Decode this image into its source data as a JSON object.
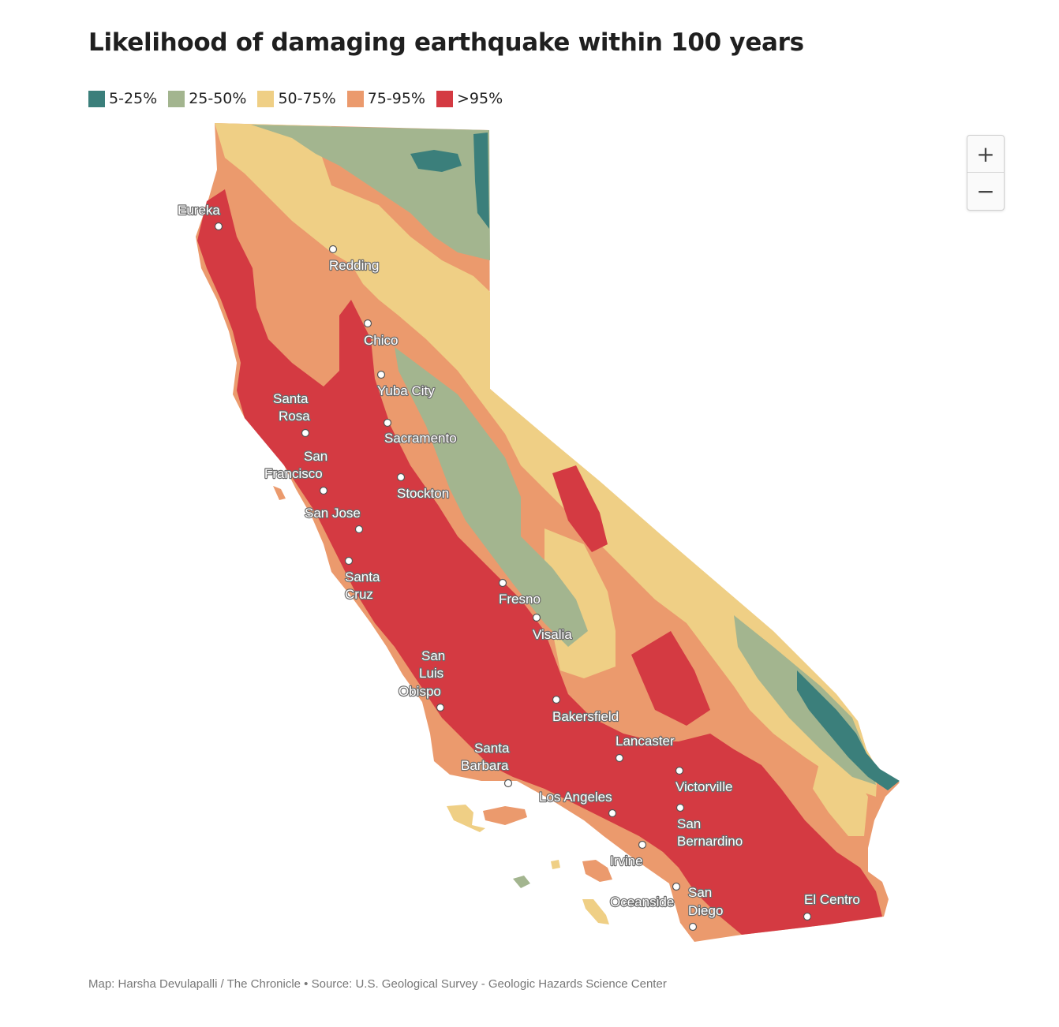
{
  "title": "Likelihood of damaging earthquake within 100 years",
  "legend": [
    {
      "label": "5-25%",
      "color": "#3b7f7b"
    },
    {
      "label": "25-50%",
      "color": "#a3b58f"
    },
    {
      "label": "50-75%",
      "color": "#efcf85"
    },
    {
      "label": "75-95%",
      "color": "#eb9a6d"
    },
    {
      "label": ">95%",
      "color": "#d43a42"
    }
  ],
  "zoom": {
    "in_label": "+",
    "out_label": "−"
  },
  "cities": [
    {
      "id": "eureka",
      "lines": [
        "Eureka"
      ]
    },
    {
      "id": "redding",
      "lines": [
        "Redding"
      ]
    },
    {
      "id": "chico",
      "lines": [
        "Chico"
      ]
    },
    {
      "id": "yuba-city",
      "lines": [
        "Yuba City"
      ]
    },
    {
      "id": "santa-rosa",
      "lines": [
        "Santa",
        "Rosa"
      ]
    },
    {
      "id": "sacramento",
      "lines": [
        "Sacramento"
      ]
    },
    {
      "id": "san-francisco",
      "lines": [
        "San",
        "Francisco"
      ]
    },
    {
      "id": "stockton",
      "lines": [
        "Stockton"
      ]
    },
    {
      "id": "san-jose",
      "lines": [
        "San Jose"
      ]
    },
    {
      "id": "santa-cruz",
      "lines": [
        "Santa",
        "Cruz"
      ]
    },
    {
      "id": "fresno",
      "lines": [
        "Fresno"
      ]
    },
    {
      "id": "visalia",
      "lines": [
        "Visalia"
      ]
    },
    {
      "id": "san-luis-obispo",
      "lines": [
        "San",
        "Luis",
        "Obispo"
      ]
    },
    {
      "id": "bakersfield",
      "lines": [
        "Bakersfield"
      ]
    },
    {
      "id": "santa-barbara",
      "lines": [
        "Santa",
        "Barbara"
      ]
    },
    {
      "id": "lancaster",
      "lines": [
        "Lancaster"
      ]
    },
    {
      "id": "victorville",
      "lines": [
        "Victorville"
      ]
    },
    {
      "id": "los-angeles",
      "lines": [
        "Los Angeles"
      ]
    },
    {
      "id": "san-bernardino",
      "lines": [
        "San",
        "Bernardino"
      ]
    },
    {
      "id": "irvine",
      "lines": [
        "Irvine"
      ]
    },
    {
      "id": "oceanside",
      "lines": [
        "Oceanside"
      ]
    },
    {
      "id": "san-diego",
      "lines": [
        "San",
        "Diego"
      ]
    },
    {
      "id": "el-centro",
      "lines": [
        "El Centro"
      ]
    }
  ],
  "credit": "Map: Harsha Devulapalli / The Chronicle • Source: U.S. Geological Survey - Geologic Hazards Science Center"
}
